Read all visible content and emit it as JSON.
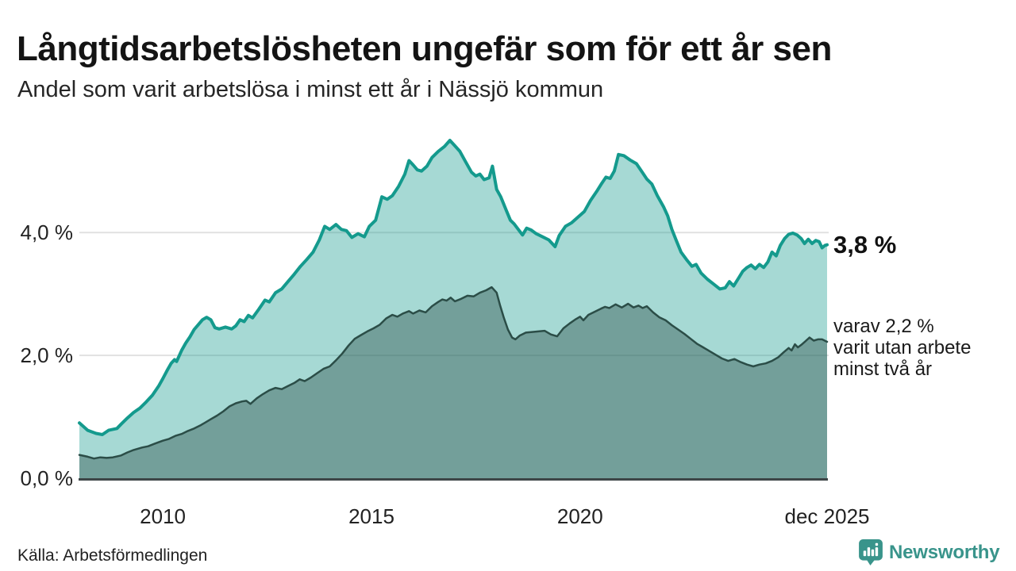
{
  "page": {
    "title": "Långtidsarbetslösheten ungefär som för ett år sen",
    "subtitle": "Andel som varit arbetslösa i minst ett år i Nässjö kommun",
    "source": "Källa: Arbetsförmedlingen",
    "brand": {
      "name": "Newsworthy",
      "color": "#39948b"
    }
  },
  "annotations": {
    "latest_total": "3,8 %",
    "secondary_lines": [
      "varav 2,2 %",
      "varit utan arbete",
      "minst två år"
    ]
  },
  "chart_data": {
    "type": "area",
    "title": "Långtidsarbetslösheten ungefär som för ett år sen",
    "subtitle": "Andel som varit arbetslösa i minst ett år i Nässjö kommun",
    "unit": "%",
    "grid": true,
    "legend_position": "annotated-right",
    "style": {
      "grid_color": "#e1e1e1",
      "baseline_color": "#3d4547",
      "tick_label_color": "#222222"
    },
    "x_axis": {
      "min": 2008,
      "max": 2025.92,
      "ticks": [
        {
          "v": 2010,
          "label": "2010"
        },
        {
          "v": 2015,
          "label": "2015"
        },
        {
          "v": 2020,
          "label": "2020"
        },
        {
          "v": 2025.92,
          "label": "dec 2025"
        }
      ]
    },
    "y_axis": {
      "min": 0,
      "max": 5.59,
      "ticks": [
        {
          "v": 0,
          "label": "0,0 %"
        },
        {
          "v": 2,
          "label": "2,0 %"
        },
        {
          "v": 4,
          "label": "4,0 %"
        }
      ]
    },
    "series": [
      {
        "name": "Andel arbetslösa minst ett år",
        "latest_value": 3.8,
        "color": "#149a8d",
        "fill": "rgba(20,154,141,0.38)",
        "stroke_width": 4,
        "points": [
          [
            2008.0,
            0.9
          ],
          [
            2008.2,
            0.78
          ],
          [
            2008.4,
            0.73
          ],
          [
            2008.55,
            0.71
          ],
          [
            2008.7,
            0.78
          ],
          [
            2008.9,
            0.81
          ],
          [
            2009.0,
            0.88
          ],
          [
            2009.15,
            0.98
          ],
          [
            2009.3,
            1.07
          ],
          [
            2009.45,
            1.14
          ],
          [
            2009.6,
            1.24
          ],
          [
            2009.75,
            1.35
          ],
          [
            2009.9,
            1.5
          ],
          [
            2010.0,
            1.62
          ],
          [
            2010.1,
            1.75
          ],
          [
            2010.2,
            1.87
          ],
          [
            2010.28,
            1.93
          ],
          [
            2010.33,
            1.9
          ],
          [
            2010.45,
            2.08
          ],
          [
            2010.55,
            2.2
          ],
          [
            2010.65,
            2.3
          ],
          [
            2010.75,
            2.42
          ],
          [
            2010.85,
            2.5
          ],
          [
            2010.95,
            2.58
          ],
          [
            2011.05,
            2.62
          ],
          [
            2011.15,
            2.58
          ],
          [
            2011.25,
            2.45
          ],
          [
            2011.35,
            2.43
          ],
          [
            2011.5,
            2.46
          ],
          [
            2011.65,
            2.43
          ],
          [
            2011.75,
            2.48
          ],
          [
            2011.85,
            2.58
          ],
          [
            2011.95,
            2.55
          ],
          [
            2012.05,
            2.65
          ],
          [
            2012.15,
            2.61
          ],
          [
            2012.3,
            2.75
          ],
          [
            2012.45,
            2.9
          ],
          [
            2012.55,
            2.87
          ],
          [
            2012.7,
            3.02
          ],
          [
            2012.85,
            3.08
          ],
          [
            2013.0,
            3.2
          ],
          [
            2013.15,
            3.32
          ],
          [
            2013.3,
            3.45
          ],
          [
            2013.45,
            3.56
          ],
          [
            2013.6,
            3.68
          ],
          [
            2013.75,
            3.88
          ],
          [
            2013.88,
            4.1
          ],
          [
            2014.0,
            4.05
          ],
          [
            2014.15,
            4.13
          ],
          [
            2014.28,
            4.05
          ],
          [
            2014.4,
            4.03
          ],
          [
            2014.53,
            3.92
          ],
          [
            2014.68,
            3.98
          ],
          [
            2014.83,
            3.93
          ],
          [
            2014.95,
            4.1
          ],
          [
            2015.1,
            4.2
          ],
          [
            2015.25,
            4.58
          ],
          [
            2015.38,
            4.54
          ],
          [
            2015.5,
            4.6
          ],
          [
            2015.65,
            4.75
          ],
          [
            2015.8,
            4.95
          ],
          [
            2015.9,
            5.17
          ],
          [
            2016.0,
            5.1
          ],
          [
            2016.1,
            5.02
          ],
          [
            2016.2,
            5.0
          ],
          [
            2016.33,
            5.08
          ],
          [
            2016.45,
            5.22
          ],
          [
            2016.6,
            5.32
          ],
          [
            2016.75,
            5.4
          ],
          [
            2016.88,
            5.5
          ],
          [
            2017.0,
            5.41
          ],
          [
            2017.12,
            5.32
          ],
          [
            2017.25,
            5.16
          ],
          [
            2017.4,
            4.98
          ],
          [
            2017.5,
            4.92
          ],
          [
            2017.6,
            4.95
          ],
          [
            2017.7,
            4.86
          ],
          [
            2017.82,
            4.89
          ],
          [
            2017.9,
            5.08
          ],
          [
            2018.0,
            4.7
          ],
          [
            2018.1,
            4.58
          ],
          [
            2018.22,
            4.38
          ],
          [
            2018.33,
            4.2
          ],
          [
            2018.42,
            4.14
          ],
          [
            2018.52,
            4.05
          ],
          [
            2018.62,
            3.96
          ],
          [
            2018.72,
            4.07
          ],
          [
            2018.83,
            4.04
          ],
          [
            2018.95,
            3.98
          ],
          [
            2019.1,
            3.93
          ],
          [
            2019.25,
            3.88
          ],
          [
            2019.4,
            3.77
          ],
          [
            2019.5,
            3.95
          ],
          [
            2019.65,
            4.1
          ],
          [
            2019.8,
            4.16
          ],
          [
            2019.95,
            4.25
          ],
          [
            2020.1,
            4.34
          ],
          [
            2020.25,
            4.52
          ],
          [
            2020.4,
            4.67
          ],
          [
            2020.52,
            4.8
          ],
          [
            2020.62,
            4.9
          ],
          [
            2020.72,
            4.88
          ],
          [
            2020.82,
            5.0
          ],
          [
            2020.92,
            5.27
          ],
          [
            2021.05,
            5.25
          ],
          [
            2021.2,
            5.18
          ],
          [
            2021.35,
            5.12
          ],
          [
            2021.5,
            4.97
          ],
          [
            2021.6,
            4.87
          ],
          [
            2021.72,
            4.79
          ],
          [
            2021.85,
            4.6
          ],
          [
            2022.0,
            4.42
          ],
          [
            2022.1,
            4.27
          ],
          [
            2022.2,
            4.05
          ],
          [
            2022.3,
            3.88
          ],
          [
            2022.42,
            3.68
          ],
          [
            2022.55,
            3.56
          ],
          [
            2022.68,
            3.45
          ],
          [
            2022.78,
            3.48
          ],
          [
            2022.9,
            3.34
          ],
          [
            2023.05,
            3.24
          ],
          [
            2023.2,
            3.16
          ],
          [
            2023.35,
            3.08
          ],
          [
            2023.48,
            3.1
          ],
          [
            2023.58,
            3.2
          ],
          [
            2023.68,
            3.13
          ],
          [
            2023.8,
            3.26
          ],
          [
            2023.9,
            3.37
          ],
          [
            2024.0,
            3.43
          ],
          [
            2024.1,
            3.47
          ],
          [
            2024.2,
            3.41
          ],
          [
            2024.3,
            3.48
          ],
          [
            2024.4,
            3.43
          ],
          [
            2024.5,
            3.52
          ],
          [
            2024.6,
            3.68
          ],
          [
            2024.7,
            3.62
          ],
          [
            2024.8,
            3.79
          ],
          [
            2024.9,
            3.9
          ],
          [
            2025.0,
            3.97
          ],
          [
            2025.1,
            3.99
          ],
          [
            2025.2,
            3.96
          ],
          [
            2025.3,
            3.9
          ],
          [
            2025.38,
            3.82
          ],
          [
            2025.47,
            3.89
          ],
          [
            2025.56,
            3.82
          ],
          [
            2025.65,
            3.87
          ],
          [
            2025.73,
            3.85
          ],
          [
            2025.8,
            3.75
          ],
          [
            2025.87,
            3.79
          ],
          [
            2025.92,
            3.8
          ]
        ]
      },
      {
        "name": "varav arbetslösa minst två år",
        "latest_value": 2.2,
        "color": "#2b4d47",
        "fill": "rgba(45,79,73,0.42)",
        "stroke_width": 2.5,
        "points": [
          [
            2008.0,
            0.38
          ],
          [
            2008.2,
            0.35
          ],
          [
            2008.35,
            0.32
          ],
          [
            2008.5,
            0.34
          ],
          [
            2008.65,
            0.33
          ],
          [
            2008.8,
            0.34
          ],
          [
            2009.0,
            0.37
          ],
          [
            2009.15,
            0.42
          ],
          [
            2009.3,
            0.46
          ],
          [
            2009.5,
            0.5
          ],
          [
            2009.65,
            0.52
          ],
          [
            2009.8,
            0.56
          ],
          [
            2010.0,
            0.61
          ],
          [
            2010.15,
            0.64
          ],
          [
            2010.3,
            0.69
          ],
          [
            2010.45,
            0.72
          ],
          [
            2010.6,
            0.77
          ],
          [
            2010.75,
            0.81
          ],
          [
            2010.9,
            0.86
          ],
          [
            2011.0,
            0.9
          ],
          [
            2011.15,
            0.96
          ],
          [
            2011.3,
            1.02
          ],
          [
            2011.45,
            1.09
          ],
          [
            2011.6,
            1.17
          ],
          [
            2011.75,
            1.22
          ],
          [
            2011.9,
            1.25
          ],
          [
            2012.0,
            1.26
          ],
          [
            2012.1,
            1.21
          ],
          [
            2012.25,
            1.3
          ],
          [
            2012.4,
            1.37
          ],
          [
            2012.55,
            1.43
          ],
          [
            2012.7,
            1.47
          ],
          [
            2012.85,
            1.45
          ],
          [
            2013.0,
            1.5
          ],
          [
            2013.15,
            1.55
          ],
          [
            2013.28,
            1.61
          ],
          [
            2013.4,
            1.58
          ],
          [
            2013.55,
            1.64
          ],
          [
            2013.7,
            1.71
          ],
          [
            2013.85,
            1.78
          ],
          [
            2014.0,
            1.82
          ],
          [
            2014.15,
            1.92
          ],
          [
            2014.3,
            2.03
          ],
          [
            2014.45,
            2.16
          ],
          [
            2014.6,
            2.27
          ],
          [
            2014.75,
            2.33
          ],
          [
            2014.9,
            2.39
          ],
          [
            2015.05,
            2.44
          ],
          [
            2015.2,
            2.5
          ],
          [
            2015.35,
            2.6
          ],
          [
            2015.5,
            2.66
          ],
          [
            2015.62,
            2.63
          ],
          [
            2015.75,
            2.68
          ],
          [
            2015.9,
            2.72
          ],
          [
            2016.0,
            2.68
          ],
          [
            2016.15,
            2.73
          ],
          [
            2016.3,
            2.7
          ],
          [
            2016.45,
            2.8
          ],
          [
            2016.6,
            2.87
          ],
          [
            2016.7,
            2.91
          ],
          [
            2016.8,
            2.89
          ],
          [
            2016.9,
            2.94
          ],
          [
            2017.0,
            2.88
          ],
          [
            2017.15,
            2.92
          ],
          [
            2017.3,
            2.97
          ],
          [
            2017.45,
            2.96
          ],
          [
            2017.6,
            3.02
          ],
          [
            2017.75,
            3.06
          ],
          [
            2017.88,
            3.11
          ],
          [
            2018.0,
            3.02
          ],
          [
            2018.08,
            2.82
          ],
          [
            2018.17,
            2.62
          ],
          [
            2018.27,
            2.42
          ],
          [
            2018.37,
            2.29
          ],
          [
            2018.45,
            2.26
          ],
          [
            2018.55,
            2.32
          ],
          [
            2018.7,
            2.37
          ],
          [
            2018.85,
            2.38
          ],
          [
            2019.0,
            2.39
          ],
          [
            2019.15,
            2.4
          ],
          [
            2019.3,
            2.34
          ],
          [
            2019.45,
            2.31
          ],
          [
            2019.6,
            2.44
          ],
          [
            2019.75,
            2.52
          ],
          [
            2019.9,
            2.59
          ],
          [
            2020.0,
            2.63
          ],
          [
            2020.08,
            2.57
          ],
          [
            2020.2,
            2.66
          ],
          [
            2020.35,
            2.71
          ],
          [
            2020.5,
            2.76
          ],
          [
            2020.6,
            2.79
          ],
          [
            2020.7,
            2.77
          ],
          [
            2020.85,
            2.83
          ],
          [
            2021.0,
            2.78
          ],
          [
            2021.15,
            2.84
          ],
          [
            2021.28,
            2.78
          ],
          [
            2021.4,
            2.81
          ],
          [
            2021.5,
            2.77
          ],
          [
            2021.6,
            2.8
          ],
          [
            2021.75,
            2.7
          ],
          [
            2021.9,
            2.62
          ],
          [
            2022.05,
            2.57
          ],
          [
            2022.2,
            2.49
          ],
          [
            2022.35,
            2.42
          ],
          [
            2022.5,
            2.35
          ],
          [
            2022.65,
            2.27
          ],
          [
            2022.8,
            2.19
          ],
          [
            2022.95,
            2.13
          ],
          [
            2023.1,
            2.07
          ],
          [
            2023.25,
            2.01
          ],
          [
            2023.4,
            1.95
          ],
          [
            2023.55,
            1.91
          ],
          [
            2023.7,
            1.94
          ],
          [
            2023.85,
            1.89
          ],
          [
            2024.0,
            1.85
          ],
          [
            2024.15,
            1.82
          ],
          [
            2024.3,
            1.85
          ],
          [
            2024.45,
            1.87
          ],
          [
            2024.6,
            1.91
          ],
          [
            2024.75,
            1.97
          ],
          [
            2024.88,
            2.05
          ],
          [
            2025.0,
            2.12
          ],
          [
            2025.07,
            2.08
          ],
          [
            2025.15,
            2.18
          ],
          [
            2025.22,
            2.13
          ],
          [
            2025.3,
            2.17
          ],
          [
            2025.4,
            2.23
          ],
          [
            2025.5,
            2.29
          ],
          [
            2025.6,
            2.24
          ],
          [
            2025.7,
            2.26
          ],
          [
            2025.8,
            2.26
          ],
          [
            2025.92,
            2.22
          ]
        ]
      }
    ]
  }
}
